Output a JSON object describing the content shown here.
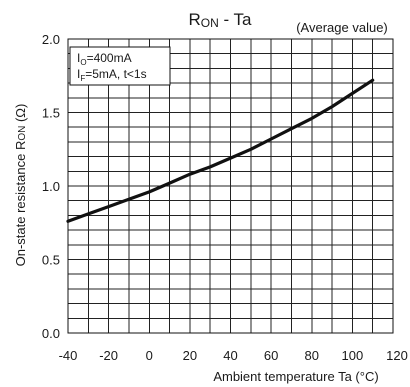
{
  "chart_data": {
    "type": "line",
    "title_main": "R",
    "title_sub": "ON",
    "title_rest": " - Ta",
    "subtitle": "(Average value)",
    "xlabel": "Ambient temperature Ta (°C)",
    "ylabel_parts": [
      "On-state resistance R",
      "ON",
      " (Ω)"
    ],
    "xlim": [
      -40,
      120
    ],
    "ylim": [
      0.0,
      2.0
    ],
    "x_ticks": [
      -40,
      -20,
      0,
      20,
      40,
      60,
      80,
      100,
      120
    ],
    "x_tick_labels": [
      "-40",
      "-20",
      "0",
      "20",
      "40",
      "60",
      "80",
      "100",
      "120"
    ],
    "y_ticks": [
      0.0,
      0.5,
      1.0,
      1.5,
      2.0
    ],
    "y_tick_labels": [
      "0.0",
      "0.5",
      "1.0",
      "1.5",
      "2.0"
    ],
    "grid": true,
    "x_grid_step": 10,
    "y_grid_step": 0.1,
    "legend": {
      "position": "top-left",
      "lines": [
        {
          "main": "I",
          "sub": "O",
          "rest": "=400mA"
        },
        {
          "main": "I",
          "sub": "F",
          "rest": "=5mA, t<1s"
        }
      ]
    },
    "series": [
      {
        "x": [
          -40,
          -30,
          -20,
          -10,
          0,
          10,
          20,
          30,
          40,
          50,
          60,
          70,
          80,
          90,
          100,
          110
        ],
        "y": [
          0.76,
          0.81,
          0.86,
          0.91,
          0.96,
          1.02,
          1.08,
          1.13,
          1.19,
          1.25,
          1.32,
          1.39,
          1.46,
          1.54,
          1.63,
          1.72
        ],
        "color": "#111111"
      }
    ]
  }
}
